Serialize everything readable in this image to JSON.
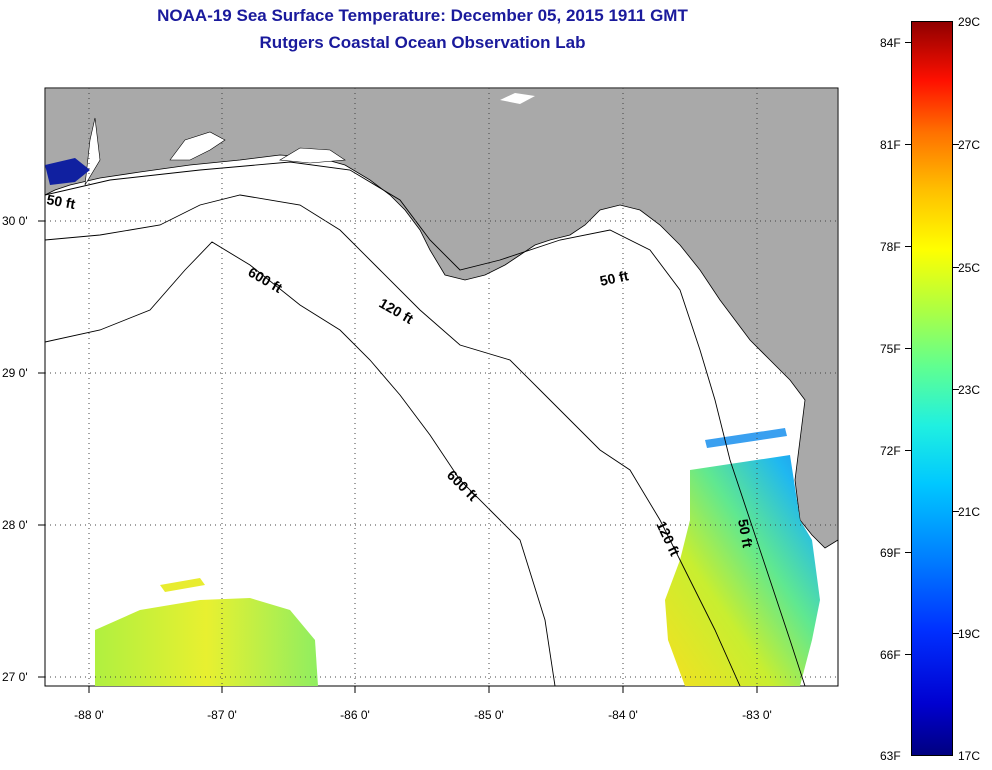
{
  "title": "NOAA-19 Sea Surface Temperature:  December 05, 2015 1911 GMT",
  "subtitle": "Rutgers Coastal Ocean Observation Lab",
  "map": {
    "lon_labels": [
      "-88 0'",
      "-87 0'",
      "-86 0'",
      "-85 0'",
      "-84 0'",
      "-83 0'"
    ],
    "lat_labels": [
      "30 0'",
      "29 0'",
      "28 0'",
      "27 0'"
    ],
    "contour_labels": [
      {
        "id": "c50w",
        "text": "50 ft"
      },
      {
        "id": "c600a",
        "text": "600 ft"
      },
      {
        "id": "c120a",
        "text": "120 ft"
      },
      {
        "id": "c50e",
        "text": "50 ft"
      },
      {
        "id": "c600b",
        "text": "600 ft"
      },
      {
        "id": "c120b",
        "text": "120 ft"
      },
      {
        "id": "c50s",
        "text": "50 ft"
      }
    ],
    "colors": {
      "land": "#a9a9a9",
      "water": "#ffffff",
      "contour": "#000000"
    }
  },
  "colorbar": {
    "fahrenheit": [
      "84F",
      "81F",
      "78F",
      "75F",
      "72F",
      "69F",
      "66F",
      "63F"
    ],
    "celsius": [
      "29C",
      "27C",
      "25C",
      "23C",
      "21C",
      "19C",
      "17C"
    ]
  }
}
